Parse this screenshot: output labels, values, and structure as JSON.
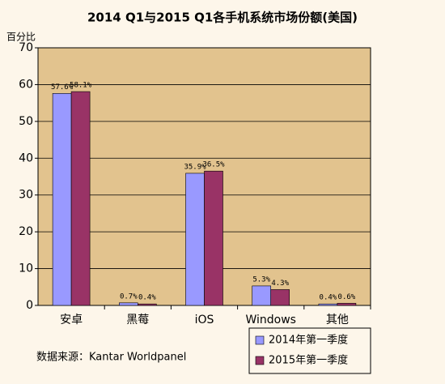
{
  "chart_data": {
    "type": "bar",
    "title": "2014 Q1与2015 Q1各手机系统市场份额(美国)",
    "y_label": "百分比",
    "source": "数据来源：Kantar Worldpanel",
    "categories": [
      "安卓",
      "黑莓",
      "iOS",
      "Windows",
      "其他"
    ],
    "series": [
      {
        "name": "2014年第一季度",
        "color": "#9999ff",
        "values": [
          57.6,
          0.7,
          35.9,
          5.3,
          0.4
        ],
        "value_labels": [
          "57.6%",
          "0.7%",
          "35.9%",
          "5.3%",
          "0.4%"
        ]
      },
      {
        "name": "2015年第一季度",
        "color": "#993366",
        "values": [
          58.1,
          0.4,
          36.5,
          4.3,
          0.6
        ],
        "value_labels": [
          "58.1%",
          "0.4%",
          "36.5%",
          "4.3%",
          "0.6%"
        ]
      }
    ],
    "ylim": [
      0,
      70
    ],
    "yticks": [
      0,
      10,
      20,
      30,
      40,
      50,
      60,
      70
    ],
    "grid": true,
    "legend": "bottom-right"
  }
}
